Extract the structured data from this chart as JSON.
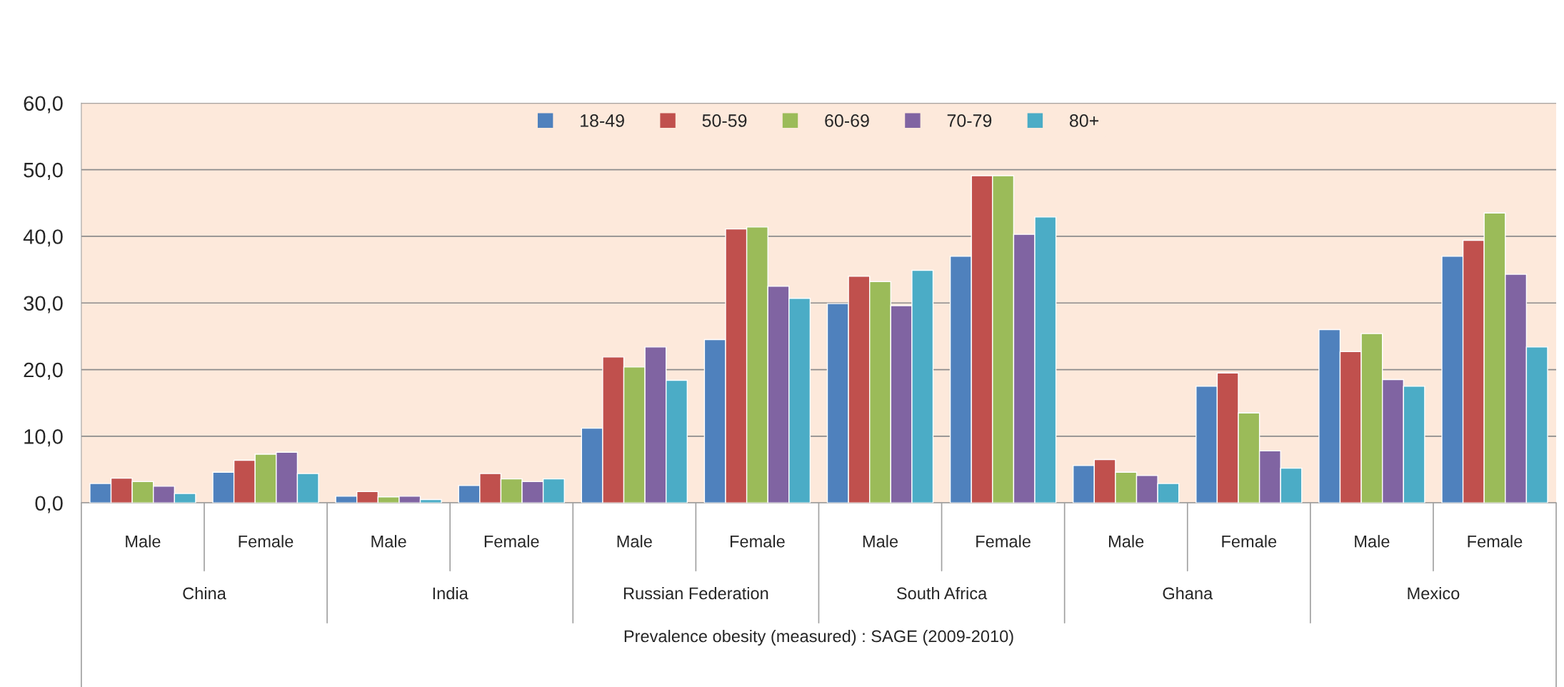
{
  "chart_data": {
    "type": "bar",
    "categories": [
      "Male",
      "Female",
      "Male",
      "Female",
      "Male",
      "Female",
      "Male",
      "Female",
      "Male",
      "Female",
      "Male",
      "Female"
    ],
    "annotations": [
      "China",
      "India",
      "Russian Federation",
      "South Africa",
      "Ghana",
      "Mexico"
    ],
    "xlabel": "Prevalence obesity (measured) : SAGE (2009-2010)",
    "series": [
      {
        "name": "18-49",
        "color": "#4f81bd",
        "values": [
          2.9,
          4.6,
          1.0,
          2.6,
          11.2,
          24.5,
          29.9,
          37.0,
          5.6,
          17.5,
          26.0,
          37.0
        ]
      },
      {
        "name": "50-59",
        "color": "#c0504d",
        "values": [
          3.7,
          6.4,
          1.7,
          4.4,
          21.9,
          41.1,
          34.0,
          49.1,
          6.5,
          19.5,
          22.7,
          39.4
        ]
      },
      {
        "name": "60-69",
        "color": "#9bbb59",
        "values": [
          3.2,
          7.3,
          0.9,
          3.6,
          20.4,
          41.4,
          33.2,
          49.1,
          4.6,
          13.5,
          25.4,
          43.5
        ]
      },
      {
        "name": "70-79",
        "color": "#8064a2",
        "values": [
          2.5,
          7.6,
          1.0,
          3.2,
          23.4,
          32.5,
          29.6,
          40.3,
          4.1,
          7.8,
          18.5,
          34.3
        ]
      },
      {
        "name": "80+",
        "color": "#4bacc6",
        "values": [
          1.4,
          4.4,
          0.5,
          3.6,
          18.4,
          30.7,
          34.9,
          42.9,
          2.9,
          5.2,
          17.5,
          23.4
        ]
      }
    ],
    "ylim": [
      0,
      60
    ],
    "yticks": [
      {
        "value": 0,
        "label": "0,0"
      },
      {
        "value": 10,
        "label": "10,0"
      },
      {
        "value": 20,
        "label": "20,0"
      },
      {
        "value": 30,
        "label": "30,0"
      },
      {
        "value": 40,
        "label": "40,0"
      },
      {
        "value": 50,
        "label": "50,0"
      },
      {
        "value": 60,
        "label": "60,0"
      }
    ],
    "grid": "y",
    "legend": "top"
  }
}
